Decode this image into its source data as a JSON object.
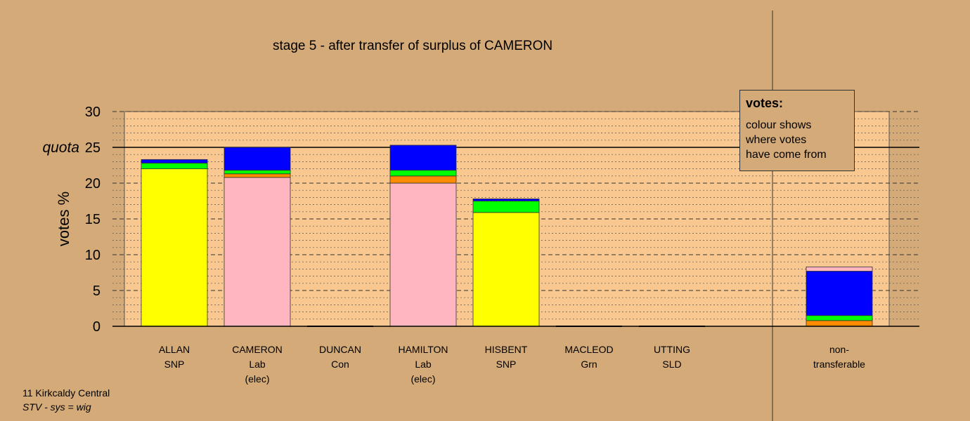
{
  "colors": {
    "background": "#d4aa78",
    "plot_area": "#f9c891",
    "SNP": "#ffff00",
    "Lab": "#ffb6c1",
    "transfer_orange": "#ff8c00",
    "transfer_green": "#00ff00",
    "transfer_blue": "#0000ff"
  },
  "chart_data": {
    "type": "bar",
    "stacked": true,
    "title": "stage 5 - after transfer of surplus of CAMERON",
    "ylabel": "votes %",
    "ylim": [
      0,
      30
    ],
    "yticks": [
      "0",
      "5",
      "10",
      "15",
      "20",
      "25",
      "30"
    ],
    "quota": {
      "label": "quota",
      "value": 25
    },
    "categories": [
      {
        "name": "ALLAN",
        "party": "SNP",
        "note": ""
      },
      {
        "name": "CAMERON",
        "party": "Lab",
        "note": "(elec)"
      },
      {
        "name": "DUNCAN",
        "party": "Con",
        "note": ""
      },
      {
        "name": "HAMILTON",
        "party": "Lab",
        "note": "(elec)"
      },
      {
        "name": "HISBENT",
        "party": "SNP",
        "note": ""
      },
      {
        "name": "MACLEOD",
        "party": "Grn",
        "note": ""
      },
      {
        "name": "UTTING",
        "party": "SLD",
        "note": ""
      }
    ],
    "bars": [
      {
        "segments": [
          {
            "color": "#ffff00",
            "value": 22.0
          },
          {
            "color": "#00ff00",
            "value": 0.8
          },
          {
            "color": "#0000ff",
            "value": 0.5
          }
        ]
      },
      {
        "segments": [
          {
            "color": "#ffb6c1",
            "value": 20.8
          },
          {
            "color": "#ff8c00",
            "value": 0.5
          },
          {
            "color": "#00ff00",
            "value": 0.5
          },
          {
            "color": "#0000ff",
            "value": 3.2
          }
        ]
      },
      {
        "segments": []
      },
      {
        "segments": [
          {
            "color": "#ffb6c1",
            "value": 20.0
          },
          {
            "color": "#ff8c00",
            "value": 1.0
          },
          {
            "color": "#00ff00",
            "value": 0.8
          },
          {
            "color": "#0000ff",
            "value": 3.5
          }
        ]
      },
      {
        "segments": [
          {
            "color": "#ffff00",
            "value": 15.9
          },
          {
            "color": "#00ff00",
            "value": 1.6
          },
          {
            "color": "#0000ff",
            "value": 0.3
          }
        ]
      },
      {
        "segments": []
      },
      {
        "segments": []
      }
    ],
    "nontransferable": {
      "label_line1": "non-",
      "label_line2": "transferable",
      "segments": [
        {
          "color": "#ff8c00",
          "value": 0.8
        },
        {
          "color": "#00ff00",
          "value": 0.7
        },
        {
          "color": "#0000ff",
          "value": 6.2
        },
        {
          "color": "#ffb6c1",
          "value": 0.6
        }
      ]
    }
  },
  "legend": {
    "title": "votes:",
    "lines": [
      "colour shows",
      "where votes",
      "have come from"
    ]
  },
  "footer": {
    "ward": "11 Kirkcaldy Central",
    "system": "STV - sys = wig"
  }
}
